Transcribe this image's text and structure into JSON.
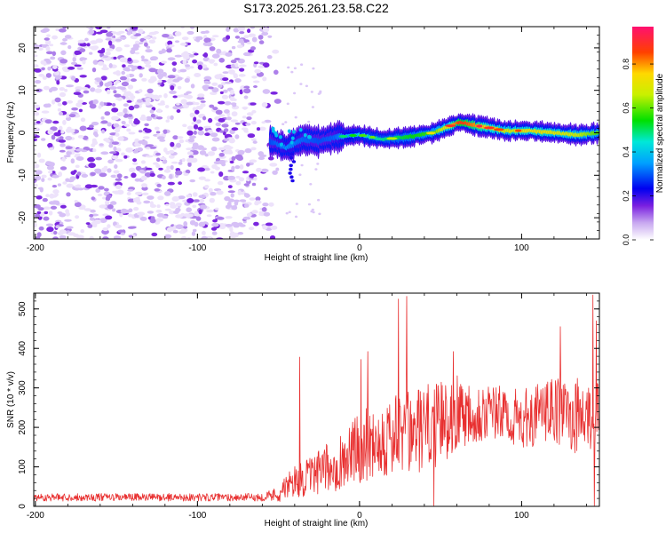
{
  "title": "S173.2025.261.23.58.C22",
  "chart_data": [
    {
      "type": "heatmap",
      "title": "S173.2025.261.23.58.C22",
      "xlabel": "Height of straight line (km)",
      "ylabel": "Frequency (Hz)",
      "xlim": [
        -201,
        148
      ],
      "ylim": [
        -25,
        25
      ],
      "x_ticks": [
        -200,
        -100,
        0,
        100
      ],
      "y_ticks": [
        -20,
        -10,
        0,
        10,
        20
      ],
      "colorbar": {
        "label": "Normalized spectral amplitude",
        "range": [
          0,
          0.97
        ],
        "ticks": [
          "0.0",
          "0.2",
          "0.4",
          "0.6",
          "0.8"
        ],
        "tick_values": [
          0,
          0.2,
          0.4,
          0.6,
          0.8
        ]
      },
      "noise_region": {
        "x_from": -201,
        "x_to": -48,
        "freq_from": -25,
        "freq_to": 25,
        "amplitude": 0.15
      },
      "ridge": [
        {
          "x": -55,
          "f": -2.0,
          "amp": 0.3
        },
        {
          "x": -45,
          "f": -3.5,
          "amp": 0.35
        },
        {
          "x": -35,
          "f": -1.5,
          "amp": 0.32
        },
        {
          "x": -25,
          "f": -2.0,
          "amp": 0.3
        },
        {
          "x": -15,
          "f": -1.0,
          "amp": 0.32
        },
        {
          "x": 0,
          "f": -0.5,
          "amp": 0.45
        },
        {
          "x": 15,
          "f": -1.5,
          "amp": 0.5
        },
        {
          "x": 30,
          "f": -1.0,
          "amp": 0.55
        },
        {
          "x": 45,
          "f": 0.0,
          "amp": 0.6
        },
        {
          "x": 55,
          "f": 1.5,
          "amp": 0.75
        },
        {
          "x": 62,
          "f": 2.5,
          "amp": 0.9
        },
        {
          "x": 75,
          "f": 1.5,
          "amp": 0.8
        },
        {
          "x": 90,
          "f": 0.5,
          "amp": 0.7
        },
        {
          "x": 105,
          "f": 0.5,
          "amp": 0.75
        },
        {
          "x": 120,
          "f": 0.0,
          "amp": 0.72
        },
        {
          "x": 135,
          "f": -0.5,
          "amp": 0.68
        },
        {
          "x": 148,
          "f": 0.0,
          "amp": 0.6
        }
      ]
    },
    {
      "type": "line",
      "xlabel": "Height of straight line (km)",
      "ylabel": "SNR (10 * v/v)",
      "xlim": [
        -201,
        148
      ],
      "ylim": [
        0,
        540
      ],
      "x_ticks": [
        -200,
        -100,
        0,
        100
      ],
      "y_ticks": [
        0,
        100,
        200,
        300,
        400,
        500
      ],
      "color": "#e83030",
      "series": [
        {
          "name": "SNR",
          "x": [
            -200,
            -150,
            -100,
            -60,
            -50,
            -40,
            -30,
            -20,
            -10,
            0,
            10,
            20,
            30,
            40,
            50,
            60,
            70,
            80,
            90,
            100,
            110,
            120,
            130,
            140,
            148
          ],
          "y": [
            22,
            22,
            22,
            22,
            30,
            60,
            70,
            90,
            110,
            140,
            160,
            165,
            170,
            185,
            200,
            230,
            235,
            230,
            225,
            210,
            225,
            235,
            220,
            215,
            210
          ],
          "spread": [
            14,
            14,
            14,
            14,
            30,
            60,
            70,
            90,
            110,
            130,
            140,
            150,
            160,
            160,
            150,
            140,
            120,
            110,
            100,
            110,
            110,
            120,
            130,
            150,
            140
          ],
          "peaks": [
            {
              "x": -37,
              "y": 378
            },
            {
              "x": 1,
              "y": 372
            },
            {
              "x": 5,
              "y": 392
            },
            {
              "x": 24,
              "y": 525
            },
            {
              "x": 29,
              "y": 532
            },
            {
              "x": 58,
              "y": 392
            },
            {
              "x": 124,
              "y": 455
            },
            {
              "x": 144,
              "y": 535
            },
            {
              "x": 146,
              "y": 470
            }
          ],
          "dips": [
            {
              "x": 46,
              "y": 0
            },
            {
              "x": 145,
              "y": 0
            }
          ]
        }
      ]
    }
  ]
}
